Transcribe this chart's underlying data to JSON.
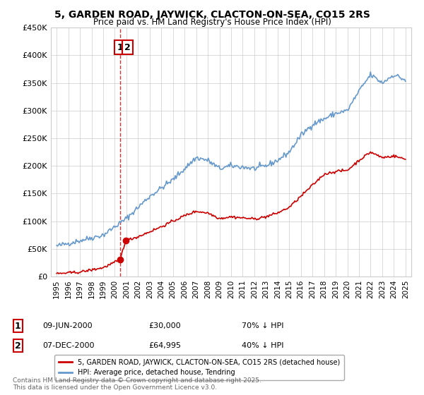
{
  "title": "5, GARDEN ROAD, JAYWICK, CLACTON-ON-SEA, CO15 2RS",
  "subtitle": "Price paid vs. HM Land Registry's House Price Index (HPI)",
  "legend_label_red": "5, GARDEN ROAD, JAYWICK, CLACTON-ON-SEA, CO15 2RS (detached house)",
  "legend_label_blue": "HPI: Average price, detached house, Tendring",
  "annotation1_label": "1",
  "annotation1_date": "09-JUN-2000",
  "annotation1_price": "£30,000",
  "annotation1_hpi": "70% ↓ HPI",
  "annotation2_label": "2",
  "annotation2_date": "07-DEC-2000",
  "annotation2_price": "£64,995",
  "annotation2_hpi": "40% ↓ HPI",
  "footer": "Contains HM Land Registry data © Crown copyright and database right 2025.\nThis data is licensed under the Open Government Licence v3.0.",
  "sale1_x": 2000.44,
  "sale1_y": 30000,
  "sale2_x": 2000.93,
  "sale2_y": 64995,
  "vline_x": 2000.44,
  "ylim": [
    0,
    450000
  ],
  "xlim": [
    1994.5,
    2025.5
  ],
  "yticks": [
    0,
    50000,
    100000,
    150000,
    200000,
    250000,
    300000,
    350000,
    400000,
    450000
  ],
  "xticks": [
    1995,
    1996,
    1997,
    1998,
    1999,
    2000,
    2001,
    2002,
    2003,
    2004,
    2005,
    2006,
    2007,
    2008,
    2009,
    2010,
    2011,
    2012,
    2013,
    2014,
    2015,
    2016,
    2017,
    2018,
    2019,
    2020,
    2021,
    2022,
    2023,
    2024,
    2025
  ],
  "red_color": "#cc0000",
  "blue_color": "#6699cc",
  "vline_color": "#cc0000",
  "background_color": "#ffffff",
  "grid_color": "#cccccc"
}
